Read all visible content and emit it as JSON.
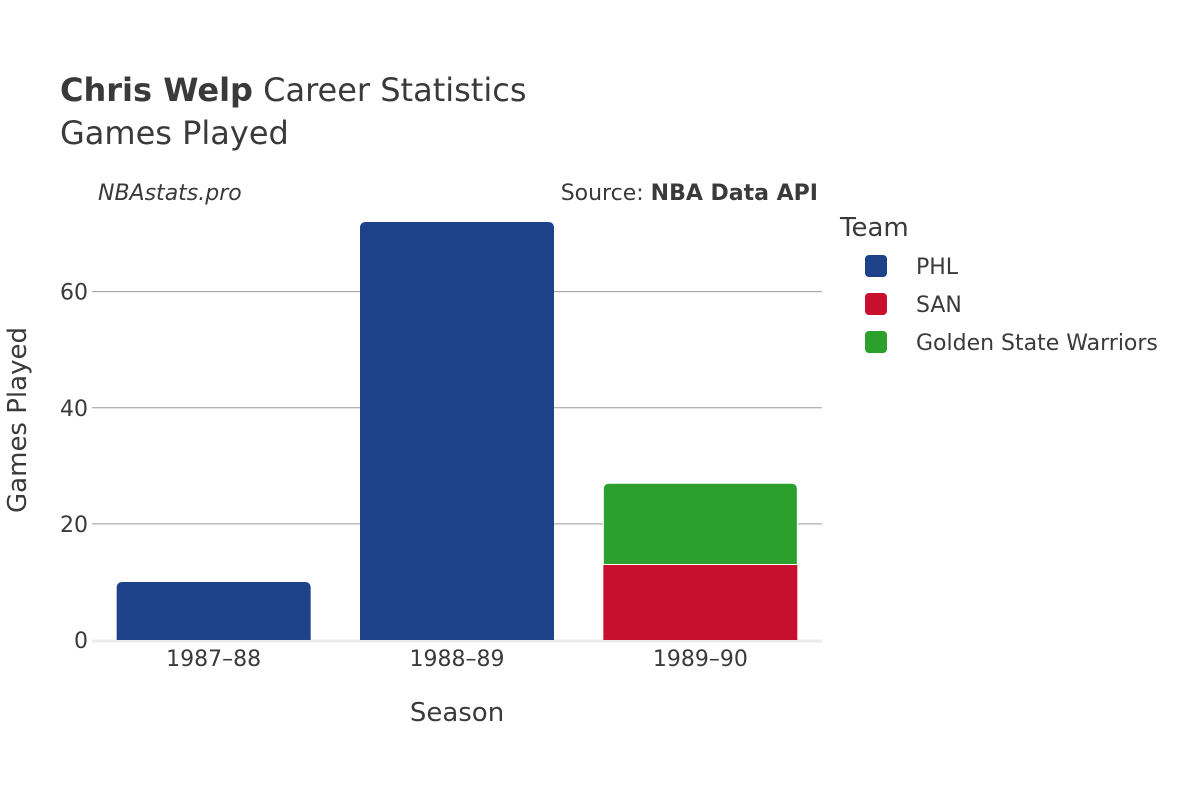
{
  "header": {
    "title_bold": "Chris Welp",
    "title_rest": " Career Statistics",
    "subtitle": "Games Played"
  },
  "watermark": "NBAstats.pro",
  "source": {
    "label": "Source: ",
    "name": "NBA Data API"
  },
  "legend": {
    "title": "Team"
  },
  "chart_data": {
    "type": "bar",
    "stacked": true,
    "title": "Chris Welp Career Statistics",
    "subtitle": "Games Played",
    "xlabel": "Season",
    "ylabel": "Games Played",
    "categories": [
      "1987–88",
      "1988–89",
      "1989–90"
    ],
    "ylim": [
      0,
      76
    ],
    "yticks": [
      0,
      20,
      40,
      60
    ],
    "grid": true,
    "legend_position": "right",
    "series": [
      {
        "name": "PHL",
        "color": "#1d428a",
        "values": [
          10,
          72,
          0
        ]
      },
      {
        "name": "SAN",
        "color": "#c8102e",
        "values": [
          0,
          0,
          13
        ]
      },
      {
        "name": "Golden State Warriors",
        "color": "#2ca02c",
        "values": [
          0,
          0,
          14
        ]
      }
    ]
  }
}
